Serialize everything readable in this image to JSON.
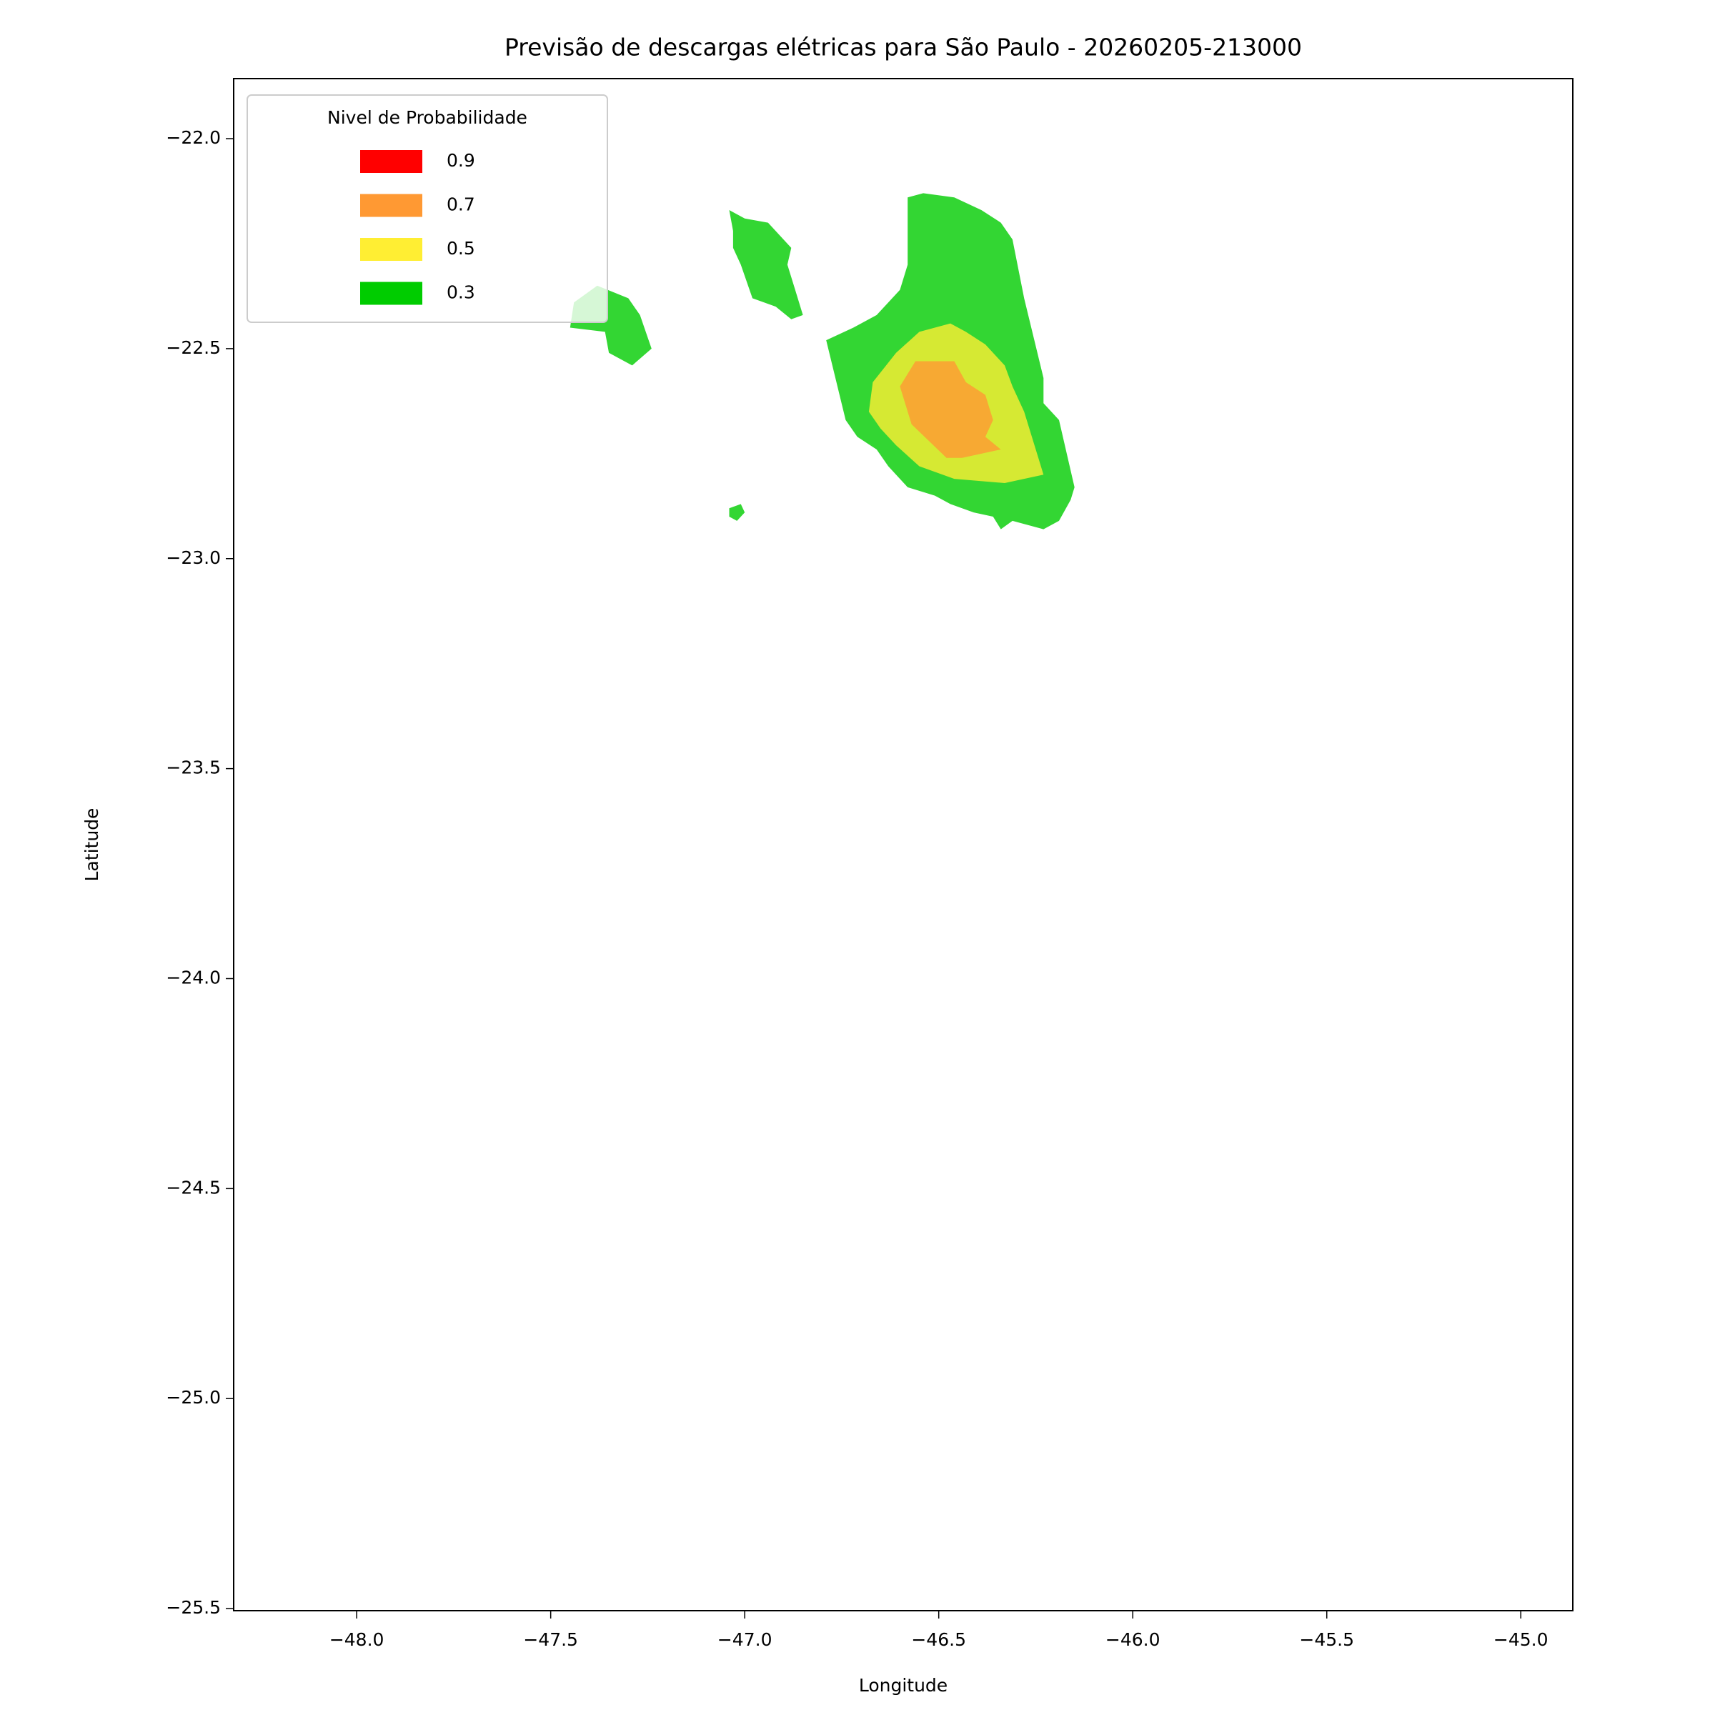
{
  "chart_data": {
    "type": "contourf",
    "title": "Previsão de descargas elétricas para São Paulo - 20260205-213000",
    "x_label": "Longitude",
    "y_label": "Latitude",
    "xlim": [
      -48.317,
      -44.866
    ],
    "ylim": [
      -25.505,
      -21.857
    ],
    "xticks": [
      {
        "value": -48,
        "label": "−48.0"
      },
      {
        "value": -47.5,
        "label": "−47.5"
      },
      {
        "value": -47,
        "label": "−47.0"
      },
      {
        "value": -46.5,
        "label": "−46.5"
      },
      {
        "value": -46,
        "label": "−46.0"
      },
      {
        "value": -45.5,
        "label": "−45.5"
      },
      {
        "value": -45,
        "label": "−45.0"
      }
    ],
    "yticks": [
      {
        "value": -22,
        "label": "−22.0"
      },
      {
        "value": -22.5,
        "label": "−22.5"
      },
      {
        "value": -23,
        "label": "−23.0"
      },
      {
        "value": -23.5,
        "label": "−23.5"
      },
      {
        "value": -24,
        "label": "−24.0"
      },
      {
        "value": -24.5,
        "label": "−24.5"
      },
      {
        "value": -25,
        "label": "−25.0"
      },
      {
        "value": -25.5,
        "label": "−25.5"
      }
    ],
    "alpha": 0.8,
    "legend": {
      "title": "Nivel de Probabilidade",
      "corner": "upper left"
    },
    "series": [
      {
        "name": 0.9,
        "color": "#ff0000",
        "polygons": []
      },
      {
        "name": 0.7,
        "color": "#ff9933",
        "polygons": [
          {
            "lon": [
              -46.56,
              -46.46,
              -46.43,
              -46.38,
              -46.36,
              -46.38,
              -46.34,
              -46.44,
              -46.48,
              -46.57,
              -46.6
            ],
            "lat": [
              -22.53,
              -22.53,
              -22.58,
              -22.61,
              -22.67,
              -22.71,
              -22.74,
              -22.76,
              -22.76,
              -22.68,
              -22.59
            ]
          }
        ]
      },
      {
        "name": 0.5,
        "color": "#ffee33",
        "polygons": [
          {
            "lon": [
              -46.55,
              -46.47,
              -46.43,
              -46.38,
              -46.33,
              -46.31,
              -46.28,
              -46.23,
              -46.33,
              -46.46,
              -46.55,
              -46.61,
              -46.65,
              -46.68,
              -46.67,
              -46.61
            ],
            "lat": [
              -22.46,
              -22.44,
              -22.46,
              -22.49,
              -22.54,
              -22.59,
              -22.65,
              -22.8,
              -22.82,
              -22.81,
              -22.78,
              -22.73,
              -22.69,
              -22.65,
              -22.58,
              -22.51
            ]
          }
        ]
      },
      {
        "name": 0.3,
        "color": "#00cc00",
        "polygons": [
          {
            "lon": [
              -46.58,
              -46.54,
              -46.46,
              -46.39,
              -46.34,
              -46.31,
              -46.28,
              -46.23,
              -46.23,
              -46.19,
              -46.15,
              -46.16,
              -46.19,
              -46.23,
              -46.27,
              -46.31,
              -46.34,
              -46.36,
              -46.41,
              -46.47,
              -46.51,
              -46.58,
              -46.63,
              -46.66,
              -46.71,
              -46.74,
              -46.79,
              -46.72,
              -46.66,
              -46.6,
              -46.58,
              -46.58
            ],
            "lat": [
              -22.14,
              -22.13,
              -22.14,
              -22.17,
              -22.2,
              -22.24,
              -22.38,
              -22.57,
              -22.63,
              -22.67,
              -22.83,
              -22.86,
              -22.91,
              -22.93,
              -22.92,
              -22.91,
              -22.93,
              -22.9,
              -22.89,
              -22.87,
              -22.85,
              -22.83,
              -22.78,
              -22.74,
              -22.71,
              -22.67,
              -22.48,
              -22.45,
              -22.42,
              -22.36,
              -22.3,
              -22.22
            ]
          },
          {
            "lon": [
              -47.04,
              -47.0,
              -46.94,
              -46.88,
              -46.89,
              -46.87,
              -46.85,
              -46.88,
              -46.92,
              -46.98,
              -47.01,
              -47.03,
              -47.03
            ],
            "lat": [
              -22.17,
              -22.19,
              -22.2,
              -22.26,
              -22.3,
              -22.36,
              -22.42,
              -22.43,
              -22.4,
              -22.38,
              -22.3,
              -22.26,
              -22.22
            ]
          },
          {
            "lon": [
              -47.44,
              -47.38,
              -47.3,
              -47.27,
              -47.24,
              -47.29,
              -47.35,
              -47.36,
              -47.45
            ],
            "lat": [
              -22.39,
              -22.35,
              -22.38,
              -22.42,
              -22.5,
              -22.54,
              -22.51,
              -22.46,
              -22.45
            ]
          },
          {
            "lon": [
              -47.04,
              -47.01,
              -47.0,
              -47.02,
              -47.04
            ],
            "lat": [
              -22.88,
              -22.87,
              -22.89,
              -22.91,
              -22.9
            ]
          }
        ]
      }
    ]
  }
}
